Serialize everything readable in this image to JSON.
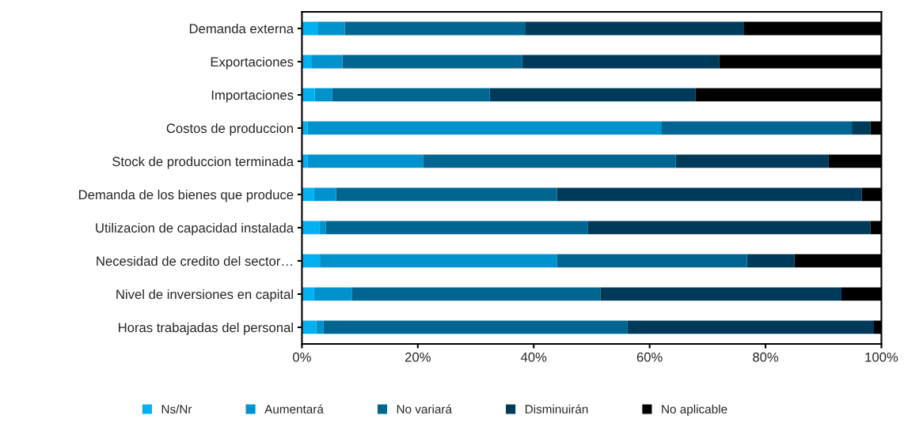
{
  "chart_data": {
    "type": "bar",
    "orientation": "horizontal",
    "stacked": true,
    "categories": [
      "Demanda externa",
      "Exportaciones",
      "Importaciones",
      "Costos de produccion",
      "Stock de produccion terminada",
      "Demanda de los bienes que produce",
      "Utilizacion de capacidad instalada",
      "Necesidad de credito del sector…",
      "Nivel de inversiones en capital",
      "Horas trabajadas del personal"
    ],
    "series": [
      {
        "name": "Ns/Nr",
        "color": "#00b0f0",
        "values": [
          2.7,
          1.6,
          2.2,
          1.0,
          1.0,
          2.1,
          3.0,
          3.1,
          2.1,
          2.5
        ]
      },
      {
        "name": "Aumentará",
        "color": "#0092cc",
        "values": [
          4.7,
          5.4,
          3.0,
          61.1,
          19.9,
          3.8,
          1.1,
          40.9,
          6.5,
          1.2
        ]
      },
      {
        "name": "No variará",
        "color": "#006590",
        "values": [
          31.2,
          31.0,
          27.2,
          32.8,
          43.6,
          38.1,
          45.2,
          32.8,
          42.9,
          52.5
        ]
      },
      {
        "name": "Disminuirán",
        "color": "#003a5a",
        "values": [
          37.7,
          34.0,
          35.5,
          3.2,
          26.4,
          52.6,
          48.8,
          8.2,
          41.6,
          42.4
        ]
      },
      {
        "name": "No aplicable",
        "color": "#000000",
        "values": [
          23.7,
          28.0,
          32.1,
          1.9,
          9.1,
          3.4,
          1.9,
          15.0,
          6.9,
          1.4
        ]
      }
    ],
    "xlim": [
      0,
      100
    ],
    "xticks": [
      {
        "value": 0,
        "label": "0%"
      },
      {
        "value": 20,
        "label": "20%"
      },
      {
        "value": 40,
        "label": "40%"
      },
      {
        "value": 60,
        "label": "60%"
      },
      {
        "value": 80,
        "label": "80%"
      },
      {
        "value": 100,
        "label": "100%"
      }
    ],
    "grid": false,
    "legend": "bottom"
  }
}
